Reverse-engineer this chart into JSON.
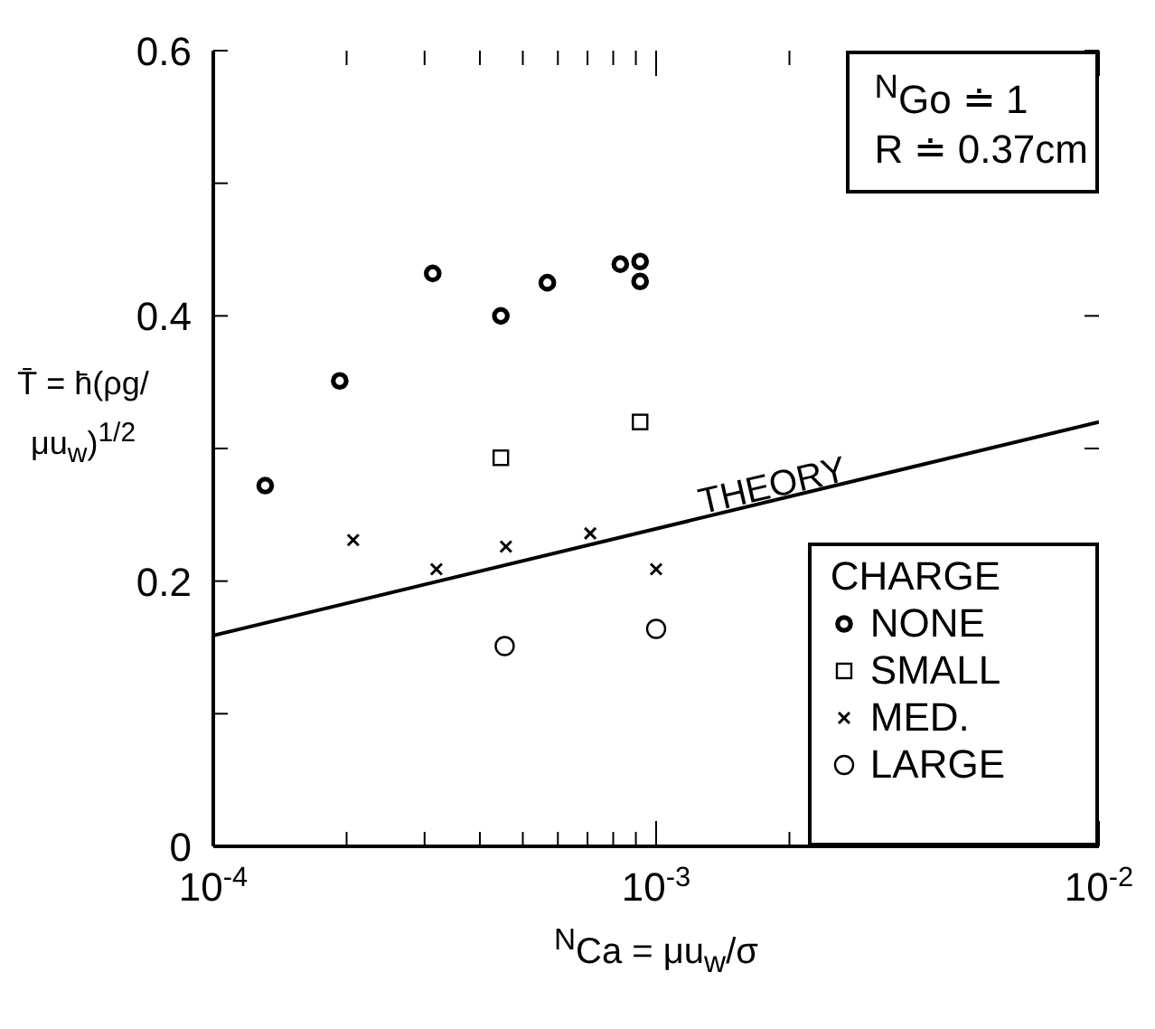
{
  "chart_data": {
    "type": "scatter",
    "xlabel": "$^{N}$Ca = μu$_{w}$/σ",
    "ylabel": "T̄ = h̄(ρg/μu$_{w}$)$^{1/2}$",
    "legend_title": "CHARGE",
    "legend": "bottom right",
    "log": "x",
    "grid": false,
    "annotations": [
      "$^{N}$Go ≐ 1",
      "R ≐ 0.37cm"
    ],
    "xlim": [
      0.0001,
      0.01
    ],
    "xticks": [
      {
        "value": 0.0001,
        "label": "10$^{-4}$"
      },
      {
        "value": 0.0002,
        "label": null
      },
      {
        "value": 0.0003,
        "label": null
      },
      {
        "value": 0.0004,
        "label": null
      },
      {
        "value": 0.0005,
        "label": null
      },
      {
        "value": 0.0006,
        "label": null
      },
      {
        "value": 0.0007,
        "label": null
      },
      {
        "value": 0.0008,
        "label": null
      },
      {
        "value": 0.0009,
        "label": null
      },
      {
        "value": 0.001,
        "label": "10$^{-3}$"
      },
      {
        "value": 0.002,
        "label": null
      },
      {
        "value": 0.003,
        "label": null
      },
      {
        "value": 0.004,
        "label": null
      },
      {
        "value": 0.005,
        "label": null
      },
      {
        "value": 0.006,
        "label": null
      },
      {
        "value": 0.007,
        "label": null
      },
      {
        "value": 0.008,
        "label": null
      },
      {
        "value": 0.009,
        "label": null
      },
      {
        "value": 0.01,
        "label": "10$^{-2}$"
      }
    ],
    "ylim": [
      0,
      0.6
    ],
    "yticks": [
      0,
      {
        "value": 0.1,
        "label": null
      },
      0.2,
      {
        "value": 0.3,
        "label": null
      },
      0.4,
      {
        "value": 0.5,
        "label": null
      },
      0.6
    ],
    "series": [
      {
        "name": "NONE",
        "color": "#000000",
        "marker": "double-circle",
        "x": [
          0.000131,
          0.000193,
          0.000313,
          0.000446,
          0.000568,
          0.00083,
          0.00092,
          0.00092
        ],
        "values": [
          0.272,
          0.351,
          0.432,
          0.4,
          0.425,
          0.439,
          0.441,
          0.426
        ]
      },
      {
        "name": "SMALL",
        "color": "#000000",
        "marker": "square",
        "x": [
          0.000446,
          0.00092
        ],
        "values": [
          0.293,
          0.32
        ]
      },
      {
        "name": "MED.",
        "color": "#000000",
        "marker": "cross",
        "x": [
          0.000207,
          0.000319,
          0.000458,
          0.00071,
          0.001
        ],
        "values": [
          0.231,
          0.209,
          0.226,
          0.236,
          0.209
        ]
      },
      {
        "name": "LARGE",
        "color": "#000000",
        "marker": "circle",
        "x": [
          0.000455,
          0.001
        ],
        "values": [
          0.151,
          0.164
        ]
      },
      {
        "name": "THEORY",
        "type": "line",
        "color": "#000000",
        "marker": "none",
        "line_style": "solid",
        "x": [
          0.0001,
          0.01
        ],
        "values": [
          0.159,
          0.32
        ]
      }
    ]
  }
}
